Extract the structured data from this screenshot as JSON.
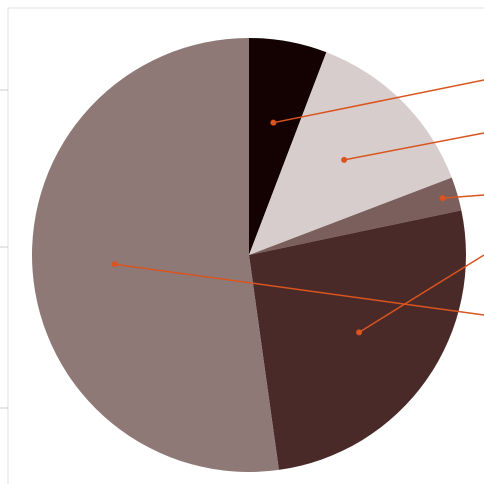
{
  "chart_data": {
    "type": "pie",
    "values": [
      5.8,
      13.4,
      2.5,
      26.1,
      52.2
    ],
    "colors": [
      "#140202",
      "#d7cdcc",
      "#7b5f5d",
      "#4a2a29",
      "#8e7977"
    ]
  }
}
